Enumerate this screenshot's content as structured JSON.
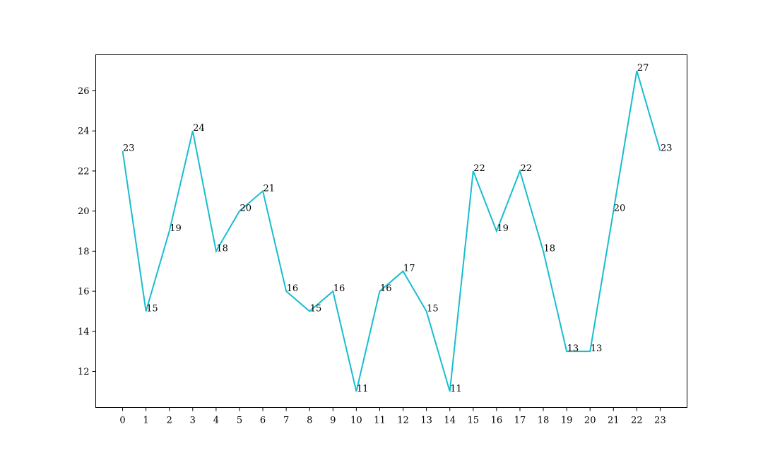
{
  "chart_data": {
    "type": "line",
    "title": "",
    "xlabel": "",
    "ylabel": "",
    "x": [
      0,
      1,
      2,
      3,
      4,
      5,
      6,
      7,
      8,
      9,
      10,
      11,
      12,
      13,
      14,
      15,
      16,
      17,
      18,
      19,
      20,
      21,
      22,
      23
    ],
    "series": [
      {
        "values": [
          23,
          15,
          19,
          24,
          18,
          20,
          21,
          16,
          15,
          16,
          11,
          16,
          17,
          15,
          11,
          22,
          19,
          22,
          18,
          13,
          13,
          20,
          27,
          23
        ],
        "color": "#17becf"
      }
    ],
    "xlim": [
      -1.15,
      24.15
    ],
    "ylim": [
      10.2,
      27.8
    ],
    "yticks": [
      12,
      14,
      16,
      18,
      20,
      22,
      24,
      26
    ],
    "grid": false,
    "legend": "none",
    "data_labels": true
  }
}
